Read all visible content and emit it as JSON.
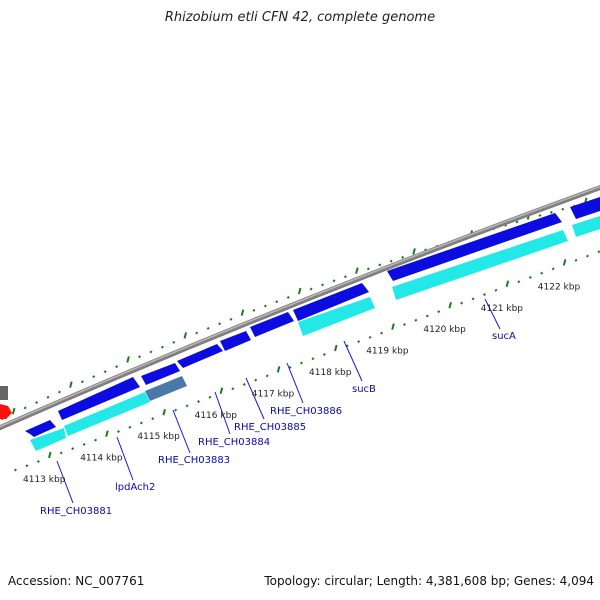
{
  "title": "Rhizobium etli CFN 42, complete genome",
  "footer": {
    "accession": "Accession: NC_007761",
    "topology": "Topology: circular; Length: 4,381,608 bp; Genes: 4,094"
  },
  "colors": {
    "backbone": "#8c8c8c",
    "tick_dark": "#1e7a1e",
    "tick_light": "#3c9a3c",
    "gene_forward": "#0c0ce0",
    "gene_reverse": "#22e8e8",
    "gene_other": "#4a78a8",
    "gene_special": "#ff1010",
    "gene_gray": "#666666",
    "label_line": "#1818d0"
  },
  "kbp_labels": [
    {
      "text": "4113 kbp",
      "u": 0
    },
    {
      "text": "4114 kbp",
      "u": 1
    },
    {
      "text": "4115 kbp",
      "u": 2
    },
    {
      "text": "4116 kbp",
      "u": 3
    },
    {
      "text": "4117 kbp",
      "u": 4
    },
    {
      "text": "4118 kbp",
      "u": 5
    },
    {
      "text": "4119 kbp",
      "u": 6
    },
    {
      "text": "4120 kbp",
      "u": 7
    },
    {
      "text": "4121 kbp",
      "u": 8
    },
    {
      "text": "4122 kbp",
      "u": 9
    }
  ],
  "gene_labels": [
    {
      "text": "RHE_CH03881",
      "u": 0.35
    },
    {
      "text": "lpdAch2",
      "u": 1.1
    },
    {
      "text": "RHE_CH03883",
      "u": 1.8
    },
    {
      "text": "RHE_CH03884",
      "u": 2.35
    },
    {
      "text": "RHE_CH03885",
      "u": 2.75
    },
    {
      "text": "RHE_CH03886",
      "u": 3.35
    },
    {
      "text": "sucB",
      "u": 5.4
    },
    {
      "text": "sucA",
      "u": 8.1
    }
  ]
}
